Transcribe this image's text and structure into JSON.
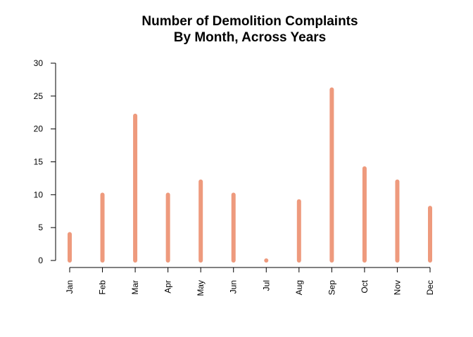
{
  "chart_data": {
    "type": "bar",
    "title_lines": [
      "Number of Demolition Complaints",
      "By Month, Across Years"
    ],
    "xlabel": "",
    "ylabel": "",
    "categories": [
      "Jan",
      "Feb",
      "Mar",
      "Apr",
      "May",
      "Jun",
      "Jul",
      "Aug",
      "Sep",
      "Oct",
      "Nov",
      "Dec"
    ],
    "values": [
      4,
      10,
      22,
      10,
      12,
      10,
      0,
      9,
      26,
      14,
      12,
      8
    ],
    "ylim": [
      0,
      30
    ],
    "yticks": [
      0,
      5,
      10,
      15,
      20,
      25,
      30
    ],
    "bar_color": "#EE9A7D",
    "grid": false,
    "legend": "none"
  }
}
